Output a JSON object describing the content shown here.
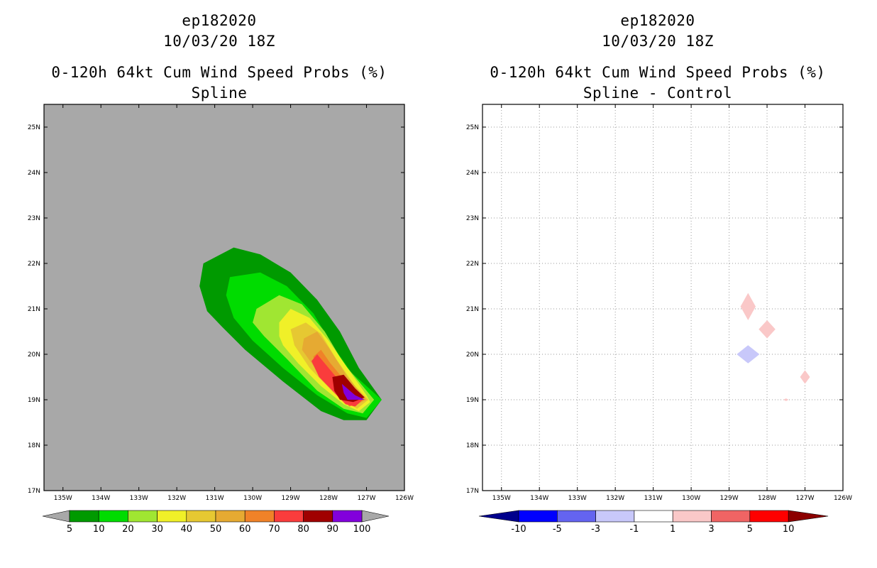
{
  "chart_data": [
    {
      "type": "heatmap",
      "panel": "left",
      "title_lines": [
        "ep182020",
        "10/03/20 18Z",
        "0-120h 64kt Cum Wind Speed Probs (%)",
        "Spline"
      ],
      "x_ticks": [
        "135W",
        "134W",
        "133W",
        "132W",
        "131W",
        "130W",
        "129W",
        "128W",
        "127W",
        "126W"
      ],
      "y_ticks": [
        "17N",
        "18N",
        "19N",
        "20N",
        "21N",
        "22N",
        "23N",
        "24N",
        "25N"
      ],
      "xlim_lon": [
        -135.5,
        -126.0
      ],
      "ylim_lat": [
        17.0,
        25.5
      ],
      "grid": false,
      "background": "#a8a8a8",
      "colorbar": {
        "labels": [
          "5",
          "10",
          "20",
          "30",
          "40",
          "50",
          "60",
          "70",
          "80",
          "90",
          "100"
        ],
        "colors": [
          "#009a00",
          "#00dc00",
          "#a0e632",
          "#f0f028",
          "#e6c832",
          "#e6aa32",
          "#f08228",
          "#fa3c3c",
          "#a00000",
          "#8200dc"
        ],
        "end_colors": [
          "#a8a8a8",
          "#a8a8a8"
        ]
      },
      "contours": [
        {
          "level": 5,
          "color": "#009a00",
          "points": [
            [
              -131.3,
              22.0
            ],
            [
              -130.5,
              22.35
            ],
            [
              -129.8,
              22.2
            ],
            [
              -129.0,
              21.8
            ],
            [
              -128.3,
              21.2
            ],
            [
              -127.7,
              20.5
            ],
            [
              -127.2,
              19.7
            ],
            [
              -126.6,
              19.0
            ],
            [
              -127.0,
              18.55
            ],
            [
              -127.6,
              18.55
            ],
            [
              -128.2,
              18.75
            ],
            [
              -129.2,
              19.4
            ],
            [
              -130.2,
              20.1
            ],
            [
              -130.8,
              20.6
            ],
            [
              -131.2,
              20.95
            ],
            [
              -131.4,
              21.5
            ]
          ]
        },
        {
          "level": 10,
          "color": "#00dc00",
          "points": [
            [
              -130.6,
              21.7
            ],
            [
              -129.8,
              21.8
            ],
            [
              -129.1,
              21.5
            ],
            [
              -128.4,
              20.9
            ],
            [
              -127.9,
              20.2
            ],
            [
              -127.4,
              19.6
            ],
            [
              -126.6,
              19.0
            ],
            [
              -127.0,
              18.6
            ],
            [
              -127.5,
              18.7
            ],
            [
              -128.3,
              19.1
            ],
            [
              -129.2,
              19.7
            ],
            [
              -130.0,
              20.3
            ],
            [
              -130.5,
              20.8
            ],
            [
              -130.7,
              21.3
            ]
          ]
        },
        {
          "level": 20,
          "color": "#a0e632",
          "points": [
            [
              -129.9,
              21.0
            ],
            [
              -129.3,
              21.3
            ],
            [
              -128.7,
              21.1
            ],
            [
              -128.1,
              20.5
            ],
            [
              -127.6,
              19.8
            ],
            [
              -127.1,
              19.3
            ],
            [
              -126.8,
              19.0
            ],
            [
              -127.1,
              18.7
            ],
            [
              -127.6,
              18.8
            ],
            [
              -128.3,
              19.2
            ],
            [
              -129.1,
              19.9
            ],
            [
              -129.7,
              20.4
            ],
            [
              -130.0,
              20.7
            ]
          ]
        },
        {
          "level": 30,
          "color": "#f0f028",
          "points": [
            [
              -129.3,
              20.7
            ],
            [
              -129.0,
              21.0
            ],
            [
              -128.5,
              20.8
            ],
            [
              -128.0,
              20.3
            ],
            [
              -127.5,
              19.7
            ],
            [
              -127.0,
              19.1
            ],
            [
              -126.9,
              18.95
            ],
            [
              -127.2,
              18.75
            ],
            [
              -127.6,
              18.9
            ],
            [
              -128.2,
              19.3
            ],
            [
              -128.8,
              19.8
            ],
            [
              -129.2,
              20.2
            ],
            [
              -129.3,
              20.4
            ]
          ]
        },
        {
          "level": 40,
          "color": "#e6c832",
          "points": [
            [
              -129.0,
              20.55
            ],
            [
              -128.6,
              20.7
            ],
            [
              -128.2,
              20.45
            ],
            [
              -127.8,
              19.9
            ],
            [
              -127.3,
              19.3
            ],
            [
              -126.95,
              19.0
            ],
            [
              -127.25,
              18.8
            ],
            [
              -127.8,
              19.1
            ],
            [
              -128.5,
              19.7
            ],
            [
              -128.9,
              20.2
            ]
          ]
        },
        {
          "level": 50,
          "color": "#e6aa32",
          "points": [
            [
              -128.65,
              20.35
            ],
            [
              -128.3,
              20.5
            ],
            [
              -128.0,
              20.15
            ],
            [
              -127.5,
              19.5
            ],
            [
              -127.0,
              19.0
            ],
            [
              -127.35,
              18.85
            ],
            [
              -127.9,
              19.25
            ],
            [
              -128.4,
              19.75
            ],
            [
              -128.7,
              20.1
            ]
          ]
        },
        {
          "level": 60,
          "color": "#f08228",
          "points": [
            [
              -128.4,
              19.95
            ],
            [
              -128.2,
              20.1
            ],
            [
              -127.95,
              19.8
            ],
            [
              -127.5,
              19.35
            ],
            [
              -127.05,
              19.0
            ],
            [
              -127.45,
              18.85
            ],
            [
              -127.95,
              19.3
            ],
            [
              -128.35,
              19.7
            ]
          ]
        },
        {
          "level": 70,
          "color": "#fa3c3c",
          "points": [
            [
              -128.45,
              19.85
            ],
            [
              -128.3,
              20.0
            ],
            [
              -128.0,
              19.7
            ],
            [
              -127.6,
              19.3
            ],
            [
              -127.1,
              19.0
            ],
            [
              -127.3,
              18.85
            ],
            [
              -127.55,
              18.9
            ],
            [
              -127.9,
              19.2
            ],
            [
              -128.25,
              19.5
            ]
          ]
        },
        {
          "level": 80,
          "color": "#a00000",
          "points": [
            [
              -127.9,
              19.5
            ],
            [
              -127.6,
              19.55
            ],
            [
              -127.3,
              19.25
            ],
            [
              -127.05,
              19.05
            ],
            [
              -127.35,
              18.95
            ],
            [
              -127.7,
              19.0
            ],
            [
              -127.85,
              19.2
            ]
          ]
        },
        {
          "level": 90,
          "color": "#8200dc",
          "points": [
            [
              -127.65,
              19.35
            ],
            [
              -127.3,
              19.1
            ],
            [
              -127.05,
              19.0
            ],
            [
              -127.5,
              19.0
            ],
            [
              -127.6,
              19.15
            ]
          ]
        }
      ]
    },
    {
      "type": "heatmap",
      "panel": "right",
      "title_lines": [
        "ep182020",
        "10/03/20 18Z",
        "0-120h 64kt Cum Wind Speed Probs (%)",
        "Spline - Control"
      ],
      "x_ticks": [
        "135W",
        "134W",
        "133W",
        "132W",
        "131W",
        "130W",
        "129W",
        "128W",
        "127W",
        "126W"
      ],
      "y_ticks": [
        "17N",
        "18N",
        "19N",
        "20N",
        "21N",
        "22N",
        "23N",
        "24N",
        "25N"
      ],
      "xlim_lon": [
        -135.5,
        -126.0
      ],
      "ylim_lat": [
        17.0,
        25.5
      ],
      "grid": true,
      "background": "#ffffff",
      "colorbar": {
        "labels": [
          "-10",
          "-5",
          "-3",
          "-1",
          "1",
          "3",
          "5",
          "10"
        ],
        "colors": [
          "#0000ff",
          "#6464f0",
          "#c8c8fa",
          "#ffffff",
          "#fac8c8",
          "#f06464",
          "#ff0000"
        ],
        "end_colors": [
          "#00008c",
          "#8c0000"
        ]
      },
      "patches": [
        {
          "lon": -128.5,
          "lat": 21.05,
          "rx": 0.2,
          "ry": 0.3,
          "color": "#fac8c8"
        },
        {
          "lon": -128.0,
          "lat": 20.55,
          "rx": 0.22,
          "ry": 0.2,
          "color": "#fac8c8"
        },
        {
          "lon": -128.5,
          "lat": 20.0,
          "rx": 0.3,
          "ry": 0.2,
          "color": "#c8c8fa"
        },
        {
          "lon": -127.0,
          "lat": 19.5,
          "rx": 0.13,
          "ry": 0.15,
          "color": "#fac8c8"
        },
        {
          "lon": -127.5,
          "lat": 19.0,
          "rx": 0.07,
          "ry": 0.03,
          "color": "#fac8c8"
        }
      ]
    }
  ]
}
